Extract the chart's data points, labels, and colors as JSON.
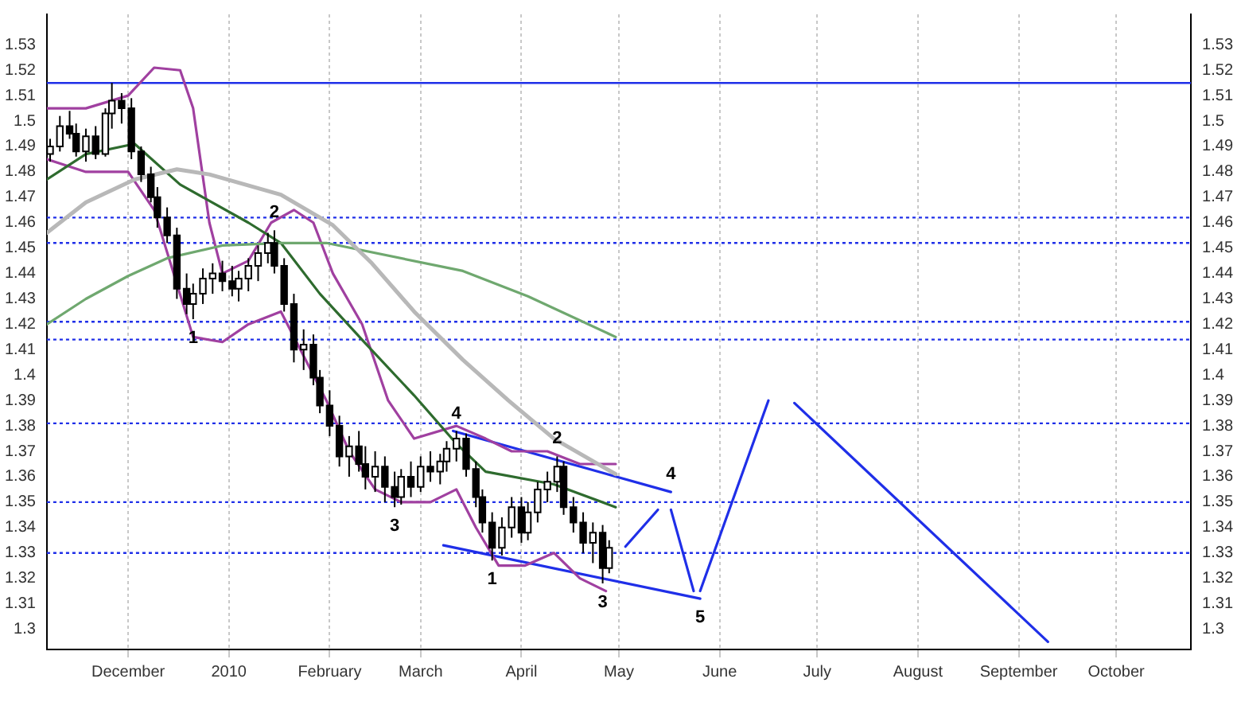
{
  "chart_data": {
    "type": "candlestick",
    "color": "#000000",
    "colors": [
      "#ffffff",
      "#ffffff",
      "#000000",
      "#000000",
      "#ffffff",
      "#000000",
      "#ffffff",
      "#ffffff",
      "#000000",
      "#000000",
      "#000000",
      "#000000",
      "#000000",
      "#000000",
      "#000000",
      "#000000",
      "#ffffff",
      "#ffffff",
      "#ffffff",
      "#000000",
      "#000000",
      "#ffffff",
      "#ffffff",
      "#ffffff",
      "#ffffff",
      "#000000",
      "#000000",
      "#000000",
      "#ffffff",
      "#000000",
      "#000000",
      "#000000",
      "#000000",
      "#ffffff",
      "#000000",
      "#000000",
      "#ffffff",
      "#000000",
      "#000000",
      "#ffffff",
      "#000000",
      "#ffffff",
      "#000000",
      "#ffffff",
      "#ffffff",
      "#ffffff",
      "#000000",
      "#000000",
      "#000000",
      "#000000",
      "#ffffff",
      "#ffffff",
      "#000000",
      "#ffffff",
      "#ffffff",
      "#ffffff",
      "#ffffff",
      "#000000",
      "#000000",
      "#000000",
      "#ffffff",
      "#000000",
      "#ffffff"
    ],
    "x": [
      "2009-11-07",
      "2009-11-10",
      "2009-11-13",
      "2009-11-15",
      "2009-11-18",
      "2009-11-21",
      "2009-11-24",
      "2009-11-26",
      "2009-11-29",
      "2009-12-02",
      "2009-12-05",
      "2009-12-08",
      "2009-12-10",
      "2009-12-13",
      "2009-12-16",
      "2009-12-19",
      "2009-12-21",
      "2009-12-24",
      "2009-12-27",
      "2009-12-30",
      "2010-01-02",
      "2010-01-04",
      "2010-01-07",
      "2010-01-10",
      "2010-01-13",
      "2010-01-15",
      "2010-01-18",
      "2010-01-21",
      "2010-01-24",
      "2010-01-27",
      "2010-01-29",
      "2010-02-01",
      "2010-02-04",
      "2010-02-07",
      "2010-02-10",
      "2010-02-12",
      "2010-02-15",
      "2010-02-18",
      "2010-02-21",
      "2010-02-23",
      "2010-02-26",
      "2010-03-01",
      "2010-03-04",
      "2010-03-07",
      "2010-03-09",
      "2010-03-12",
      "2010-03-15",
      "2010-03-18",
      "2010-03-20",
      "2010-03-23",
      "2010-03-26",
      "2010-03-29",
      "2010-04-01",
      "2010-04-03",
      "2010-04-06",
      "2010-04-09",
      "2010-04-12",
      "2010-04-14",
      "2010-04-17",
      "2010-04-20",
      "2010-04-23",
      "2010-04-26",
      "2010-04-28"
    ],
    "ohlc": [
      [
        1.487,
        1.493,
        1.484,
        1.49
      ],
      [
        1.49,
        1.502,
        1.488,
        1.498
      ],
      [
        1.498,
        1.504,
        1.493,
        1.495
      ],
      [
        1.495,
        1.499,
        1.486,
        1.488
      ],
      [
        1.488,
        1.497,
        1.484,
        1.494
      ],
      [
        1.494,
        1.498,
        1.485,
        1.487
      ],
      [
        1.487,
        1.505,
        1.486,
        1.503
      ],
      [
        1.503,
        1.515,
        1.497,
        1.508
      ],
      [
        1.508,
        1.511,
        1.499,
        1.505
      ],
      [
        1.505,
        1.509,
        1.485,
        1.488
      ],
      [
        1.488,
        1.49,
        1.476,
        1.479
      ],
      [
        1.479,
        1.482,
        1.468,
        1.47
      ],
      [
        1.47,
        1.474,
        1.458,
        1.462
      ],
      [
        1.462,
        1.466,
        1.452,
        1.455
      ],
      [
        1.455,
        1.458,
        1.43,
        1.434
      ],
      [
        1.434,
        1.44,
        1.424,
        1.428
      ],
      [
        1.428,
        1.436,
        1.422,
        1.432
      ],
      [
        1.432,
        1.442,
        1.428,
        1.438
      ],
      [
        1.438,
        1.444,
        1.432,
        1.44
      ],
      [
        1.44,
        1.445,
        1.433,
        1.437
      ],
      [
        1.437,
        1.443,
        1.431,
        1.434
      ],
      [
        1.434,
        1.441,
        1.429,
        1.438
      ],
      [
        1.438,
        1.446,
        1.433,
        1.443
      ],
      [
        1.443,
        1.451,
        1.437,
        1.448
      ],
      [
        1.448,
        1.456,
        1.444,
        1.452
      ],
      [
        1.452,
        1.457,
        1.44,
        1.443
      ],
      [
        1.443,
        1.446,
        1.425,
        1.428
      ],
      [
        1.428,
        1.432,
        1.405,
        1.41
      ],
      [
        1.41,
        1.418,
        1.402,
        1.412
      ],
      [
        1.412,
        1.416,
        1.396,
        1.399
      ],
      [
        1.399,
        1.402,
        1.385,
        1.388
      ],
      [
        1.388,
        1.394,
        1.376,
        1.38
      ],
      [
        1.38,
        1.384,
        1.364,
        1.368
      ],
      [
        1.368,
        1.376,
        1.36,
        1.372
      ],
      [
        1.372,
        1.378,
        1.362,
        1.365
      ],
      [
        1.365,
        1.372,
        1.355,
        1.36
      ],
      [
        1.36,
        1.37,
        1.354,
        1.364
      ],
      [
        1.364,
        1.368,
        1.35,
        1.356
      ],
      [
        1.356,
        1.362,
        1.348,
        1.352
      ],
      [
        1.352,
        1.363,
        1.349,
        1.36
      ],
      [
        1.36,
        1.366,
        1.352,
        1.356
      ],
      [
        1.356,
        1.368,
        1.354,
        1.364
      ],
      [
        1.364,
        1.37,
        1.358,
        1.362
      ],
      [
        1.362,
        1.369,
        1.357,
        1.366
      ],
      [
        1.366,
        1.374,
        1.362,
        1.371
      ],
      [
        1.371,
        1.378,
        1.366,
        1.375
      ],
      [
        1.375,
        1.377,
        1.36,
        1.363
      ],
      [
        1.363,
        1.366,
        1.348,
        1.352
      ],
      [
        1.352,
        1.355,
        1.338,
        1.342
      ],
      [
        1.342,
        1.346,
        1.327,
        1.332
      ],
      [
        1.332,
        1.344,
        1.329,
        1.34
      ],
      [
        1.34,
        1.352,
        1.336,
        1.348
      ],
      [
        1.348,
        1.352,
        1.334,
        1.338
      ],
      [
        1.338,
        1.35,
        1.335,
        1.346
      ],
      [
        1.346,
        1.358,
        1.342,
        1.355
      ],
      [
        1.355,
        1.362,
        1.35,
        1.358
      ],
      [
        1.358,
        1.368,
        1.354,
        1.364
      ],
      [
        1.364,
        1.366,
        1.345,
        1.348
      ],
      [
        1.348,
        1.352,
        1.338,
        1.342
      ],
      [
        1.342,
        1.346,
        1.33,
        1.334
      ],
      [
        1.334,
        1.342,
        1.326,
        1.338
      ],
      [
        1.338,
        1.341,
        1.318,
        1.324
      ],
      [
        1.324,
        1.335,
        1.322,
        1.332
      ]
    ],
    "series": [
      {
        "type": "line",
        "color": "#b8b8b8",
        "x": [
          "2009-11-06",
          "2009-11-18",
          "2009-12-03",
          "2009-12-16",
          "2009-12-26",
          "2010-01-17",
          "2010-02-02",
          "2010-02-14",
          "2010-02-27",
          "2010-03-14",
          "2010-03-28",
          "2010-04-11",
          "2010-04-30"
        ],
        "values": [
          1.456,
          1.468,
          1.477,
          1.481,
          1.479,
          1.471,
          1.459,
          1.444,
          1.425,
          1.406,
          1.39,
          1.375,
          1.361
        ]
      },
      {
        "type": "line",
        "color": "#6fa86f",
        "x": [
          "2009-11-06",
          "2009-11-18",
          "2009-12-01",
          "2009-12-13",
          "2009-12-30",
          "2010-01-17",
          "2010-01-31",
          "2010-03-14",
          "2010-04-03",
          "2010-04-30"
        ],
        "values": [
          1.42,
          1.43,
          1.439,
          1.446,
          1.451,
          1.452,
          1.452,
          1.441,
          1.431,
          1.415
        ]
      },
      {
        "type": "line",
        "color": "#2e6b2e",
        "x": [
          "2009-11-06",
          "2009-11-18",
          "2009-12-03",
          "2009-12-17",
          "2010-01-07",
          "2010-01-17",
          "2010-01-29",
          "2010-02-12",
          "2010-02-27",
          "2010-03-12",
          "2010-03-21",
          "2010-04-11",
          "2010-04-30"
        ],
        "values": [
          1.477,
          1.487,
          1.491,
          1.475,
          1.46,
          1.452,
          1.432,
          1.4125,
          1.392,
          1.373,
          1.362,
          1.357,
          1.348
        ]
      },
      {
        "type": "line",
        "color": "#a040a0",
        "x": [
          "2009-11-06",
          "2009-11-18",
          "2009-12-01",
          "2009-12-09",
          "2009-12-17",
          "2009-12-21",
          "2009-12-26",
          "2009-12-30",
          "2010-01-07",
          "2010-01-14",
          "2010-01-21",
          "2010-01-27",
          "2010-02-02",
          "2010-02-11",
          "2010-02-19",
          "2010-02-27",
          "2010-03-12",
          "2010-03-21",
          "2010-03-29",
          "2010-04-09",
          "2010-04-19",
          "2010-04-30"
        ],
        "values": [
          1.505,
          1.505,
          1.51,
          1.521,
          1.52,
          1.505,
          1.46,
          1.44,
          1.445,
          1.46,
          1.465,
          1.46,
          1.44,
          1.42,
          1.39,
          1.375,
          1.38,
          1.375,
          1.37,
          1.37,
          1.365,
          1.365
        ]
      },
      {
        "type": "line",
        "color": "#a040a0",
        "x": [
          "2009-11-06",
          "2009-11-18",
          "2009-12-01",
          "2009-12-09",
          "2009-12-16",
          "2009-12-21",
          "2009-12-30",
          "2010-01-07",
          "2010-01-17",
          "2010-01-23",
          "2010-01-31",
          "2010-02-07",
          "2010-02-15",
          "2010-02-23",
          "2010-03-04",
          "2010-03-12",
          "2010-03-18",
          "2010-03-25",
          "2010-04-02",
          "2010-04-11",
          "2010-04-19",
          "2010-04-27"
        ],
        "values": [
          1.485,
          1.48,
          1.48,
          1.465,
          null,
          1.415,
          1.413,
          1.42,
          1.425,
          1.41,
          1.39,
          1.37,
          1.355,
          1.35,
          1.35,
          1.355,
          1.34,
          1.325,
          1.325,
          1.33,
          1.32,
          1.315
        ]
      },
      {
        "type": "line",
        "color": "#1f2fe8",
        "x": [
          "2010-03-11",
          "2010-05-17"
        ],
        "values": [
          1.378,
          1.354
        ]
      },
      {
        "type": "line",
        "color": "#1f2fe8",
        "x": [
          "2010-03-08",
          "2010-05-26"
        ],
        "values": [
          1.333,
          1.312
        ]
      },
      {
        "type": "line",
        "color": "#1f2fe8",
        "x": [
          "2010-05-03",
          "2010-05-13"
        ],
        "values": [
          1.3325,
          1.347
        ]
      },
      {
        "type": "line",
        "color": "#1f2fe8",
        "x": [
          "2010-05-17",
          "2010-05-24"
        ],
        "values": [
          1.347,
          1.315
        ]
      },
      {
        "type": "line",
        "color": "#1f2fe8",
        "x": [
          "2010-05-26",
          "2010-06-16"
        ],
        "values": [
          1.315,
          1.39
        ]
      },
      {
        "type": "line",
        "color": "#1f2fe8",
        "x": [
          "2010-06-24",
          "2010-09-10"
        ],
        "values": [
          1.389,
          1.295
        ]
      }
    ],
    "ref_lines": [
      {
        "axis": "y",
        "value": 1.515,
        "color": "#1f2fe8",
        "line_style": "solid"
      },
      {
        "axis": "y",
        "value": 1.462,
        "color": "#1f2fe8",
        "line_style": "dotted"
      },
      {
        "axis": "y",
        "value": 1.452,
        "color": "#1f2fe8",
        "line_style": "dotted"
      },
      {
        "axis": "y",
        "value": 1.421,
        "color": "#1f2fe8",
        "line_style": "dotted"
      },
      {
        "axis": "y",
        "value": 1.414,
        "color": "#1f2fe8",
        "line_style": "dotted"
      },
      {
        "axis": "y",
        "value": 1.381,
        "color": "#1f2fe8",
        "line_style": "dotted"
      },
      {
        "axis": "y",
        "value": 1.35,
        "color": "#1f2fe8",
        "line_style": "dotted"
      },
      {
        "axis": "y",
        "value": 1.33,
        "color": "#1f2fe8",
        "line_style": "dotted"
      }
    ],
    "annotations": [
      {
        "text": "1",
        "x": "2009-12-21",
        "y": 1.422
      },
      {
        "text": "2",
        "x": "2010-01-15",
        "y": 1.457
      },
      {
        "text": "3",
        "x": "2010-02-21",
        "y": 1.348
      },
      {
        "text": "4",
        "x": "2010-03-12",
        "y": 1.378
      },
      {
        "text": "5",
        "x": "2010-05-26",
        "y": 1.312
      },
      {
        "text": "2",
        "x": "2010-04-12",
        "y": 1.368
      },
      {
        "text": "1",
        "x": "2010-03-23",
        "y": 1.327
      },
      {
        "text": "3",
        "x": "2010-04-26",
        "y": 1.318
      },
      {
        "text": "4",
        "x": "2010-05-17",
        "y": 1.354
      }
    ],
    "xlim": [
      "2009-11-06",
      "2010-10-24"
    ],
    "xticks": [
      {
        "value": "2009-12-01",
        "label": "December"
      },
      {
        "value": "2010-01-01",
        "label": "2010"
      },
      {
        "value": "2010-02-01",
        "label": "February"
      },
      {
        "value": "2010-03-01",
        "label": "March"
      },
      {
        "value": "2010-04-01",
        "label": "April"
      },
      {
        "value": "2010-05-01",
        "label": "May"
      },
      {
        "value": "2010-06-01",
        "label": "June"
      },
      {
        "value": "2010-07-01",
        "label": "July"
      },
      {
        "value": "2010-08-01",
        "label": "August"
      },
      {
        "value": "2010-09-01",
        "label": "September"
      },
      {
        "value": "2010-10-01",
        "label": "October"
      }
    ],
    "ylim": [
      1.292,
      1.542
    ],
    "yticks": [
      1.3,
      1.31,
      1.32,
      1.33,
      1.34,
      1.35,
      1.36,
      1.37,
      1.38,
      1.39,
      1.4,
      1.41,
      1.42,
      1.43,
      1.44,
      1.45,
      1.46,
      1.47,
      1.48,
      1.49,
      1.5,
      1.51,
      1.52,
      1.53
    ],
    "y2lim": [
      1.292,
      1.542
    ],
    "y2ticks": [
      1.3,
      1.31,
      1.32,
      1.33,
      1.34,
      1.35,
      1.36,
      1.37,
      1.38,
      1.39,
      1.4,
      1.41,
      1.42,
      1.43,
      1.44,
      1.45,
      1.46,
      1.47,
      1.48,
      1.49,
      1.5,
      1.51,
      1.52,
      1.53
    ],
    "grid": "x",
    "legend": false
  }
}
